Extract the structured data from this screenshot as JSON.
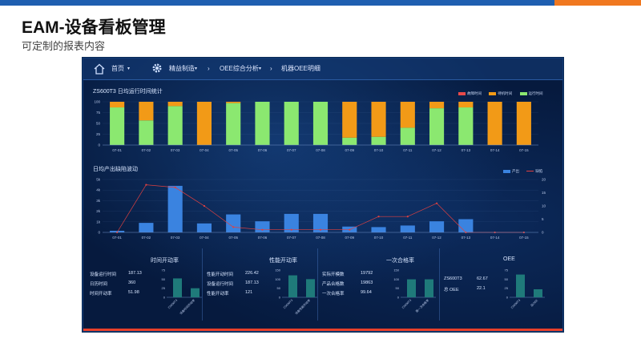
{
  "page": {
    "title": "EAM-设备看板管理",
    "subtitle": "可定制的报表内容"
  },
  "nav": {
    "home": "首页",
    "lean": "精益制造",
    "oee_analysis": "OEE综合分析",
    "machine_detail": "机器OEE明细"
  },
  "colors": {
    "stop": "#e84a4a",
    "idle": "#f29a17",
    "run": "#8be870",
    "output_bar": "#3a83e0",
    "defect_line": "#e04040",
    "mini_bar": "#1f7a7a"
  },
  "chart_data": [
    {
      "type": "bar",
      "title": "ZS600T3 日均运行时间统计",
      "categories": [
        "07-01",
        "07-02",
        "07-03",
        "07-04",
        "07-05",
        "07-06",
        "07-07",
        "07-08",
        "07-09",
        "07-10",
        "07-11",
        "07-12",
        "07-13",
        "07-14",
        "07-15"
      ],
      "series": [
        {
          "name": "运行时间",
          "values": [
            87,
            57,
            90,
            0,
            97,
            100,
            100,
            100,
            17,
            19,
            40,
            85,
            87,
            0,
            0
          ]
        },
        {
          "name": "待机时间",
          "values": [
            13,
            43,
            10,
            100,
            3,
            0,
            0,
            0,
            83,
            81,
            60,
            15,
            13,
            100,
            100
          ]
        },
        {
          "name": "故障时间",
          "values": [
            0,
            0,
            0,
            0,
            0,
            0,
            0,
            0,
            0,
            0,
            0,
            0,
            0,
            0,
            0
          ]
        }
      ],
      "stacked": true,
      "ylim": [
        0,
        100
      ],
      "yticks": [
        "0",
        "25",
        "50",
        "75",
        "100"
      ],
      "legend": [
        "故障时间",
        "待机时间",
        "运行时间"
      ]
    },
    {
      "type": "bar",
      "title": "日均产出缺陷波动",
      "categories": [
        "07-01",
        "07-02",
        "07-03",
        "07-04",
        "07-05",
        "07-06",
        "07-07",
        "07-08",
        "07-09",
        "07-10",
        "07-11",
        "07-12",
        "07-13",
        "07-14",
        "07-15"
      ],
      "series": [
        {
          "name": "产出",
          "type": "bar",
          "values": [
            150,
            900,
            4400,
            850,
            1700,
            1050,
            1750,
            1750,
            550,
            500,
            650,
            1050,
            1250,
            0,
            0
          ]
        },
        {
          "name": "缺陷",
          "type": "line",
          "values": [
            0,
            18,
            17,
            10,
            2,
            1,
            1,
            1,
            1,
            6,
            6,
            11,
            0,
            0,
            0
          ]
        }
      ],
      "ylim": [
        0,
        5000
      ],
      "yticks": [
        "0",
        "1k",
        "2k",
        "3k",
        "4k",
        "5k"
      ],
      "y2lim": [
        0,
        20
      ],
      "y2ticks": [
        "0",
        "5",
        "10",
        "15",
        "20"
      ],
      "legend": [
        "产出",
        "缺陷"
      ]
    }
  ],
  "panels": [
    {
      "title": "时间开动率",
      "rows": [
        [
          "设备运行时间",
          "187.13"
        ],
        [
          "日历时间",
          "360"
        ],
        [
          "时间开动率",
          "51.98"
        ]
      ],
      "bars": [
        {
          "label": "ZS600T3",
          "value": 52
        },
        {
          "label": "设备时间开动率",
          "value": 25
        }
      ],
      "yticks": [
        "0",
        "25",
        "50",
        "75"
      ]
    },
    {
      "title": "性能开动率",
      "rows": [
        [
          "性能开动时间",
          "226.42"
        ],
        [
          "设备运行时间",
          "187.13"
        ],
        [
          "性能开动率",
          "121"
        ]
      ],
      "bars": [
        {
          "label": "ZS600T3",
          "value": 121
        },
        {
          "label": "设备性能开动率",
          "value": 100
        }
      ],
      "yticks": [
        "0",
        "50",
        "100",
        "150"
      ]
    },
    {
      "title": "一次合格率",
      "rows": [
        [
          "实际开模数",
          "19792"
        ],
        [
          "产品合格数",
          "19863"
        ],
        [
          "一次合格率",
          "99.64"
        ]
      ],
      "bars": [
        {
          "label": "ZS600T3",
          "value": 99
        },
        {
          "label": "第一次合格率",
          "value": 99
        }
      ],
      "yticks": [
        "0",
        "50",
        "100",
        "150"
      ]
    },
    {
      "title": "OEE",
      "rows": [
        [
          "ZS600T3",
          "62.67"
        ],
        [
          "总 OEE",
          "22.1"
        ]
      ],
      "bars": [
        {
          "label": "ZS600T3",
          "value": 62.67
        },
        {
          "label": "总OEE",
          "value": 22.1
        }
      ],
      "yticks": [
        "0",
        "25",
        "50",
        "75"
      ]
    }
  ]
}
